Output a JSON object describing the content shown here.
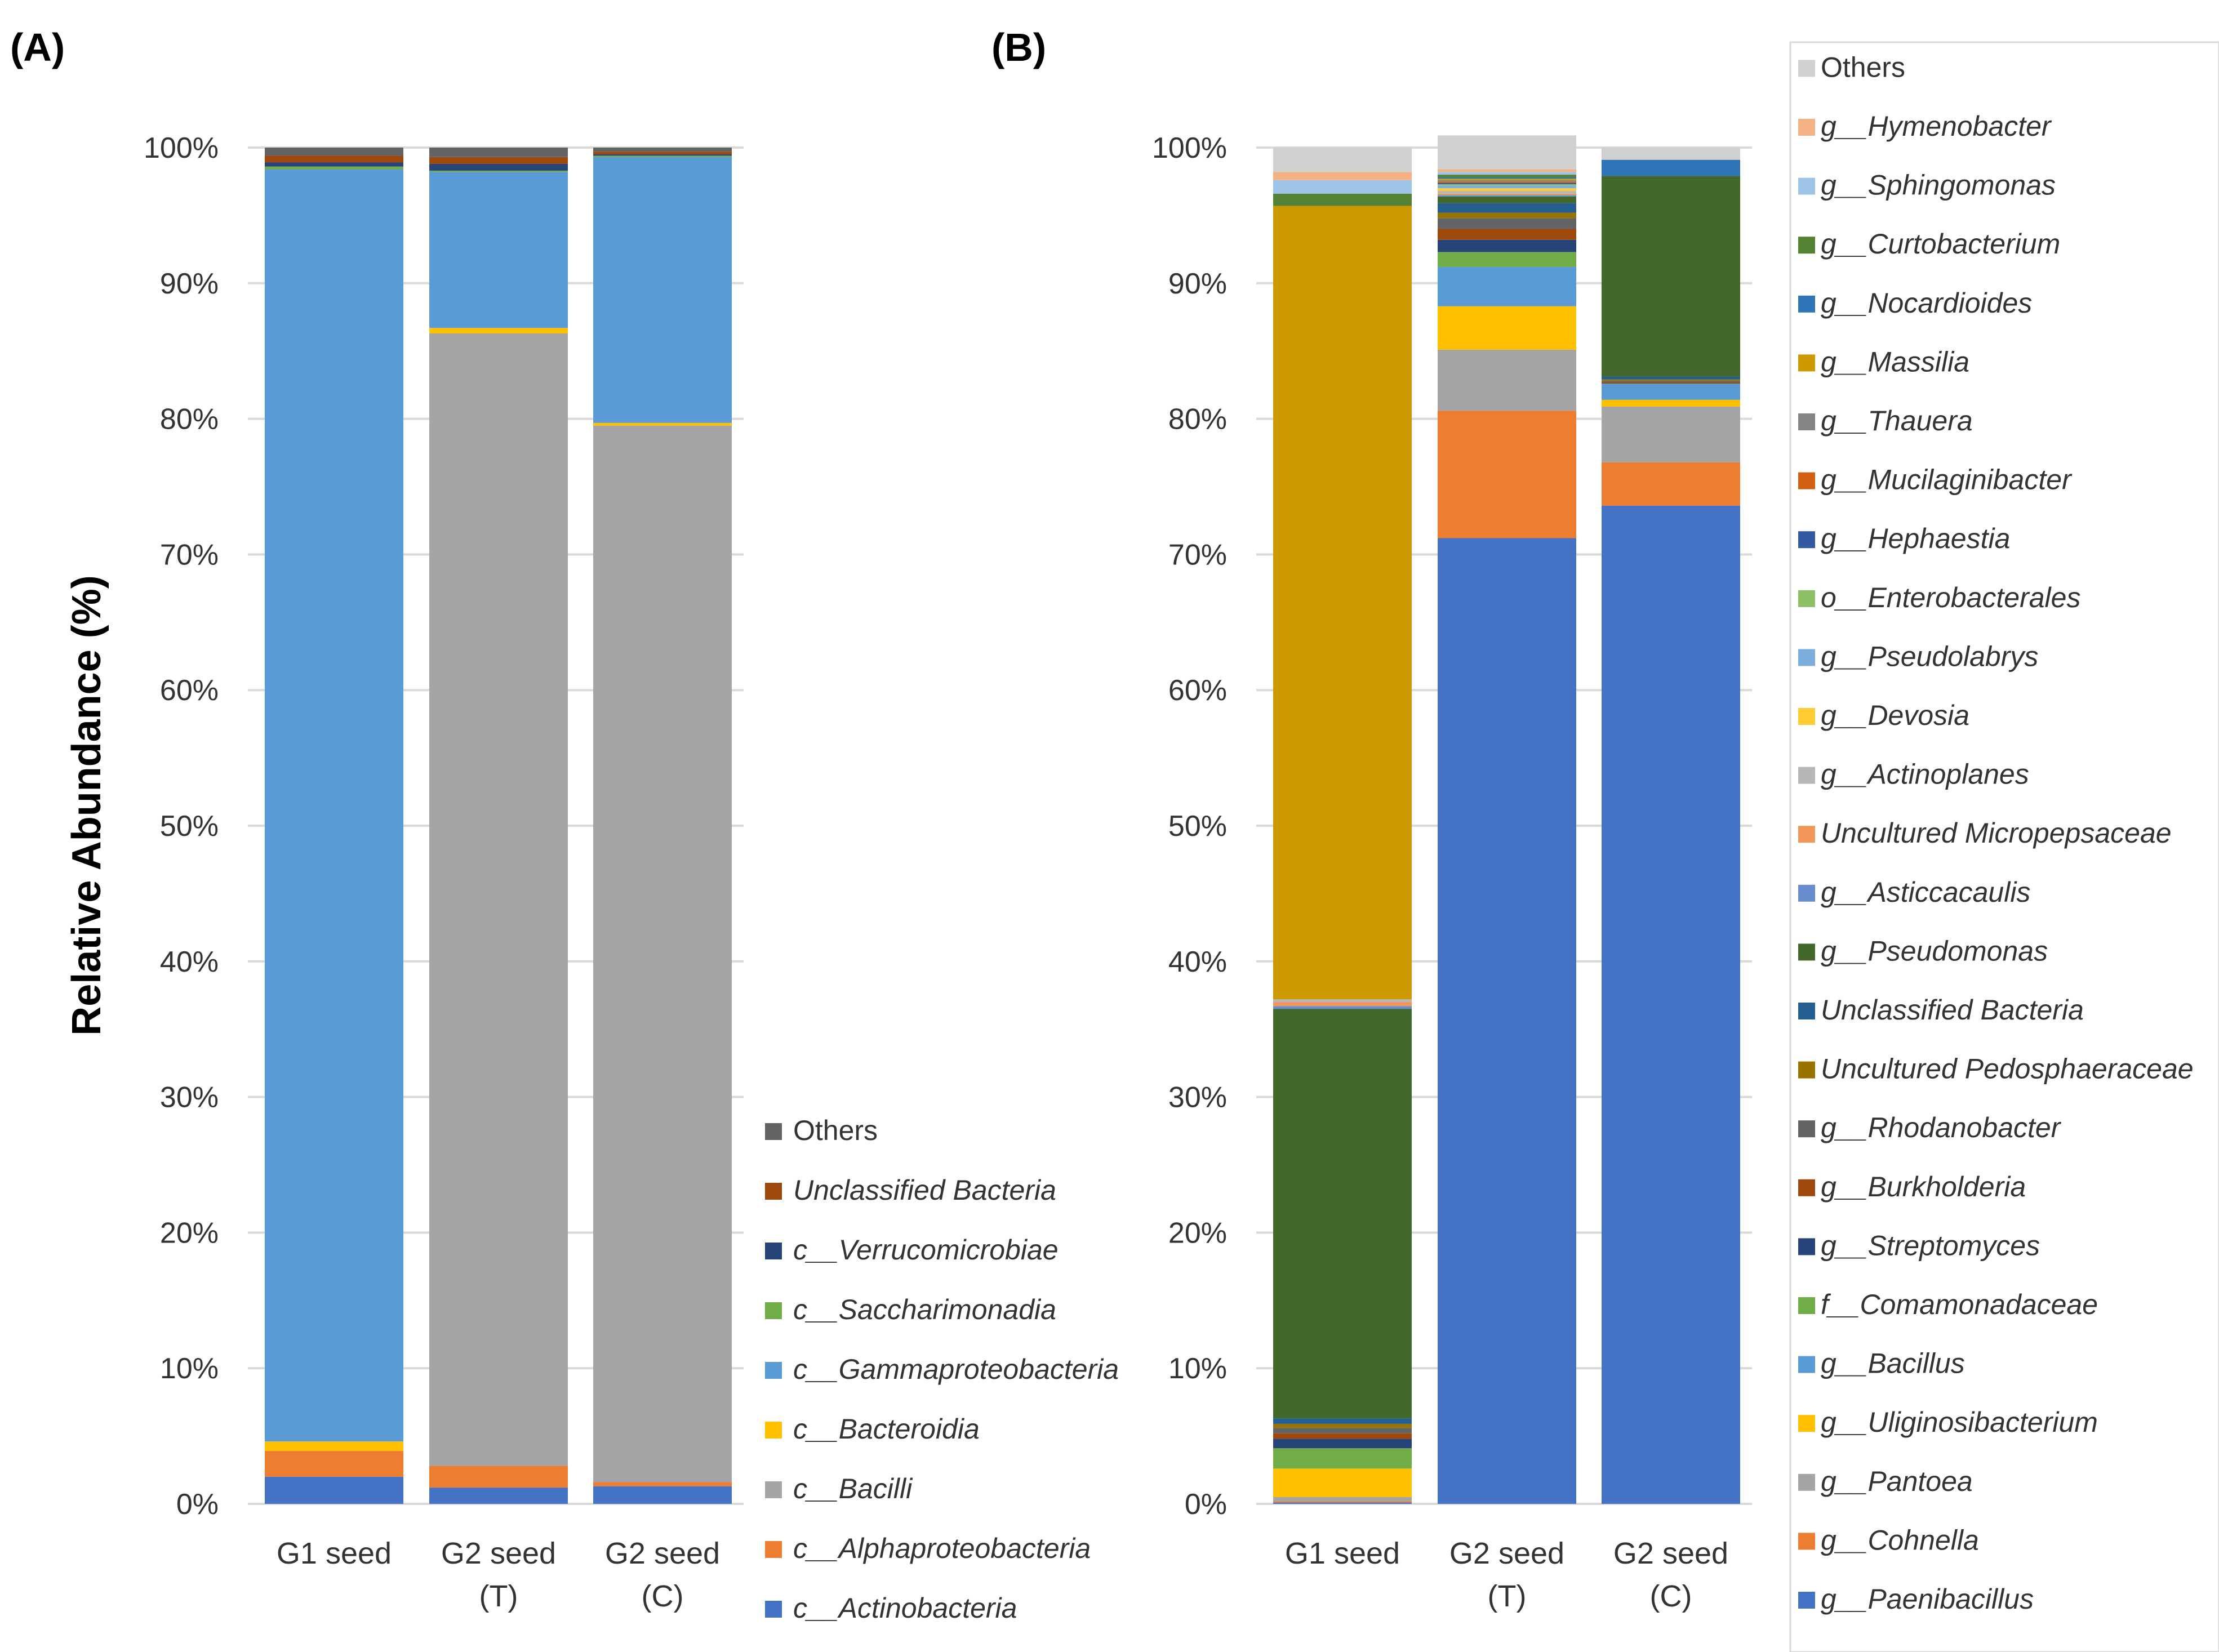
{
  "chart_data": [
    {
      "panel": "(A)",
      "type": "stacked-bar",
      "ylabel": "Relative Abundance (%)",
      "ylim": [
        0,
        100
      ],
      "yticks": [
        "0%",
        "10%",
        "20%",
        "30%",
        "40%",
        "50%",
        "60%",
        "70%",
        "80%",
        "90%",
        "100%"
      ],
      "categories": [
        {
          "line1": "G1 seed",
          "line2": ""
        },
        {
          "line1": "G2 seed",
          "line2": "(T)"
        },
        {
          "line1": "G2 seed",
          "line2": "(C)"
        }
      ],
      "series": [
        {
          "name": "c__Actinobacteria",
          "prefix": "c__",
          "italic": "Actinobacteria",
          "color": "#4472c4",
          "values": [
            2.0,
            1.2,
            1.3
          ]
        },
        {
          "name": "c__Alphaproteobacteria",
          "prefix": "c__",
          "italic": "Alphaproteobacteria",
          "color": "#ed7d31",
          "values": [
            1.9,
            1.6,
            0.3
          ]
        },
        {
          "name": "c__Bacilli",
          "prefix": "c__",
          "italic": "Bacilli",
          "color": "#a5a5a5",
          "values": [
            0.0,
            83.5,
            77.9
          ]
        },
        {
          "name": "c__Bacteroidia",
          "prefix": "c__",
          "italic": "Bacteroidia",
          "color": "#ffc000",
          "values": [
            0.7,
            0.4,
            0.2
          ]
        },
        {
          "name": "c__Gammaproteobacteria",
          "prefix": "c__",
          "italic": "Gammaproteobacteria",
          "color": "#5b9bd5",
          "values": [
            93.8,
            11.5,
            19.6
          ]
        },
        {
          "name": "c__Saccharimonadia",
          "prefix": "c__",
          "italic": "Saccharimonadia",
          "color": "#70ad47",
          "values": [
            0.2,
            0.1,
            0.1
          ]
        },
        {
          "name": "c__Verrucomicrobiae",
          "prefix": "c__",
          "italic": "Verrucomicrobiae",
          "color": "#264478",
          "values": [
            0.3,
            0.5,
            0.1
          ]
        },
        {
          "name": "Unclassified Bacteria",
          "prefix": "",
          "italic": "Unclassified Bacteria",
          "color": "#9e480e",
          "values": [
            0.5,
            0.5,
            0.2
          ]
        },
        {
          "name": "Others",
          "prefix": "Others",
          "italic": "",
          "color": "#636363",
          "values": [
            0.6,
            0.7,
            0.3
          ]
        }
      ]
    },
    {
      "panel": "(B)",
      "type": "stacked-bar",
      "ylim": [
        0,
        100
      ],
      "yticks": [
        "0%",
        "10%",
        "20%",
        "30%",
        "40%",
        "50%",
        "60%",
        "70%",
        "80%",
        "90%",
        "100%"
      ],
      "categories": [
        {
          "line1": "G1 seed",
          "line2": ""
        },
        {
          "line1": "G2 seed",
          "line2": "(T)"
        },
        {
          "line1": "G2 seed",
          "line2": "(C)"
        }
      ],
      "series": [
        {
          "name": "g__Paenibacillus",
          "prefix": "g__",
          "italic": "Paenibacillus",
          "color": "#4472c4",
          "values": [
            0.1,
            71.2,
            73.6
          ]
        },
        {
          "name": "g__Cohnella",
          "prefix": "g__",
          "italic": "Cohnella",
          "color": "#ed7d31",
          "values": [
            0.1,
            9.4,
            3.2
          ]
        },
        {
          "name": "g__Pantoea",
          "prefix": "g__",
          "italic": "Pantoea",
          "color": "#a5a5a5",
          "values": [
            0.3,
            4.5,
            4.1
          ]
        },
        {
          "name": "g__Uliginosibacterium",
          "prefix": "g__",
          "italic": "Uliginosibacterium",
          "color": "#ffc000",
          "values": [
            2.1,
            3.2,
            0.5
          ]
        },
        {
          "name": "g__Bacillus",
          "prefix": "g__",
          "italic": "Bacillus",
          "color": "#5b9bd5",
          "values": [
            0.0,
            2.9,
            1.2
          ]
        },
        {
          "name": "f__Comamonadaceae",
          "prefix": "f__",
          "italic": "Comamonadaceae",
          "color": "#70ad47",
          "values": [
            1.5,
            1.1,
            0.0
          ]
        },
        {
          "name": "g__Streptomyces",
          "prefix": "g__",
          "italic": "Streptomyces",
          "color": "#264478",
          "values": [
            0.7,
            0.9,
            0.0
          ]
        },
        {
          "name": "g__Burkholderia",
          "prefix": "g__",
          "italic": "Burkholderia",
          "color": "#9e480e",
          "values": [
            0.4,
            0.8,
            0.1
          ]
        },
        {
          "name": "g__Rhodanobacter",
          "prefix": "g__",
          "italic": "Rhodanobacter",
          "color": "#636363",
          "values": [
            0.4,
            0.8,
            0.1
          ]
        },
        {
          "name": "Uncultured Pedosphaeraceae",
          "prefix": "",
          "italic": "Uncultured Pedosphaeraceae",
          "color": "#997300",
          "values": [
            0.3,
            0.4,
            0.1
          ]
        },
        {
          "name": "Unclassified Bacteria",
          "prefix": "",
          "italic": "Unclassified Bacteria",
          "color": "#255e91",
          "values": [
            0.4,
            0.7,
            0.2
          ]
        },
        {
          "name": "g__Pseudomonas",
          "prefix": "g__",
          "italic": "Pseudomonas",
          "color": "#43682b",
          "values": [
            30.2,
            0.5,
            14.8
          ]
        },
        {
          "name": "g__Asticcacaulis",
          "prefix": "g__",
          "italic": "Asticcacaulis",
          "color": "#698ed0",
          "values": [
            0.2,
            0.1,
            0.0
          ]
        },
        {
          "name": "Uncultured Micropepsaceae",
          "prefix": "",
          "italic": "Uncultured Micropepsaceae",
          "color": "#f1975a",
          "values": [
            0.3,
            0.1,
            0.0
          ]
        },
        {
          "name": "g__Actinoplanes",
          "prefix": "g__",
          "italic": "Actinoplanes",
          "color": "#b7b7b7",
          "values": [
            0.2,
            0.2,
            0.0
          ]
        },
        {
          "name": "g__Devosia",
          "prefix": "g__",
          "italic": "Devosia",
          "color": "#ffcd33",
          "values": [
            0.0,
            0.2,
            0.0
          ]
        },
        {
          "name": "g__Pseudolabrys",
          "prefix": "g__",
          "italic": "Pseudolabrys",
          "color": "#7cafdd",
          "values": [
            0.0,
            0.2,
            0.0
          ]
        },
        {
          "name": "o__Enterobacterales",
          "prefix": "o__",
          "italic": "Enterobacterales",
          "color": "#8cc168",
          "values": [
            0.0,
            0.1,
            0.0
          ]
        },
        {
          "name": "g__Hephaestia",
          "prefix": "g__",
          "italic": "Hephaestia",
          "color": "#335aa1",
          "values": [
            0.0,
            0.1,
            0.0
          ]
        },
        {
          "name": "g__Mucilaginibacter",
          "prefix": "g__",
          "italic": "Mucilaginibacter",
          "color": "#d26012",
          "values": [
            0.0,
            0.1,
            0.0
          ]
        },
        {
          "name": "g__Thauera",
          "prefix": "g__",
          "italic": "Thauera",
          "color": "#848484",
          "values": [
            0.0,
            0.1,
            0.0
          ]
        },
        {
          "name": "g__Massilia",
          "prefix": "g__",
          "italic": "Massilia",
          "color": "#cc9a00",
          "values": [
            58.5,
            0.1,
            0.0
          ]
        },
        {
          "name": "g__Nocardioides",
          "prefix": "g__",
          "italic": "Nocardioides",
          "color": "#2e75b6",
          "values": [
            0.0,
            0.1,
            1.2
          ]
        },
        {
          "name": "g__Curtobacterium",
          "prefix": "g__",
          "italic": "Curtobacterium",
          "color": "#548235",
          "values": [
            0.9,
            0.2,
            0.0
          ]
        },
        {
          "name": "g__Sphingomonas",
          "prefix": "g__",
          "italic": "Sphingomonas",
          "color": "#9dc3e6",
          "values": [
            1.0,
            0.2,
            0.0
          ]
        },
        {
          "name": "g__Hymenobacter",
          "prefix": "g__",
          "italic": "Hymenobacter",
          "color": "#f4b183",
          "values": [
            0.6,
            0.2,
            0.0
          ]
        },
        {
          "name": "Others",
          "prefix": "Others",
          "italic": "",
          "color": "#d0d0d0",
          "values": [
            1.8,
            2.5,
            0.9
          ]
        }
      ]
    }
  ]
}
